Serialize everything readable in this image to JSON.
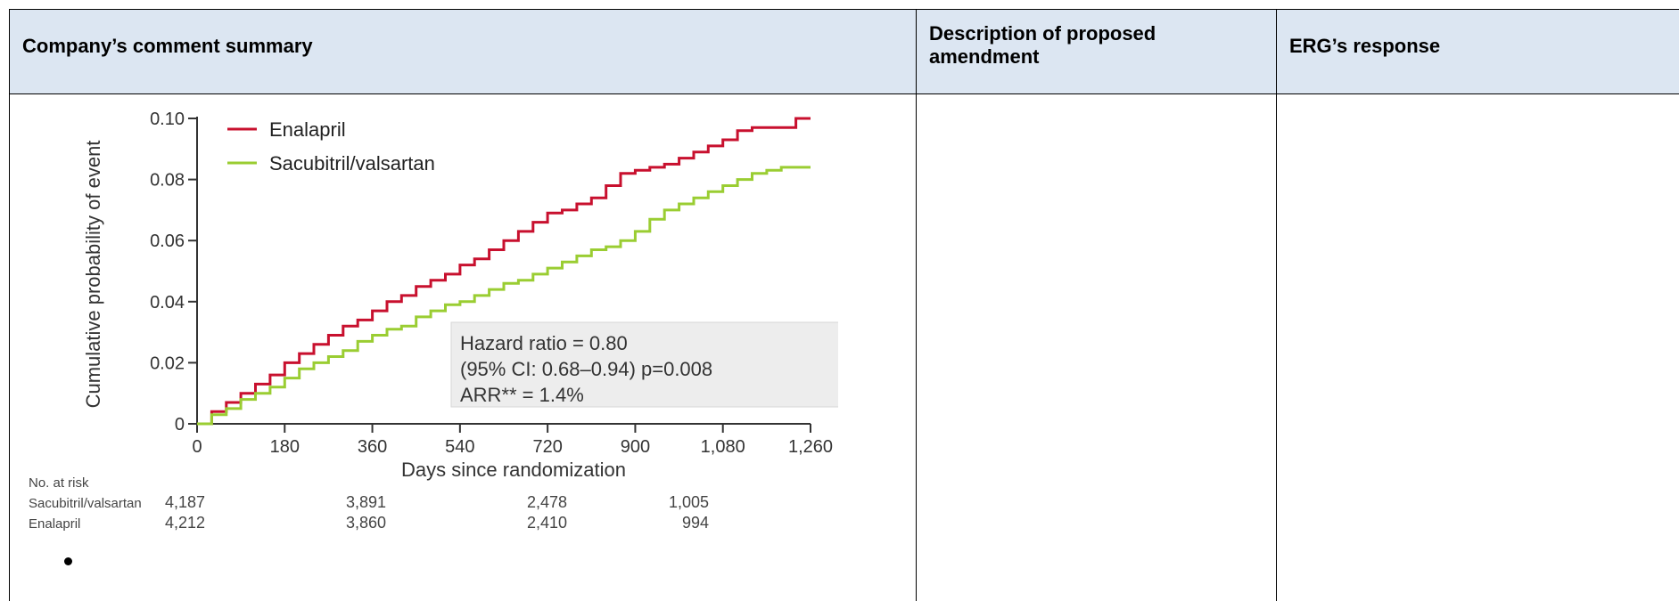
{
  "table": {
    "headers": [
      "Company’s comment summary",
      "Description of proposed amendment",
      "ERG’s response"
    ]
  },
  "chart_data": {
    "type": "line",
    "xlabel": "Days since randomization",
    "ylabel": "Cumulative probability of event",
    "xlim": [
      0,
      1260
    ],
    "ylim": [
      0,
      0.1
    ],
    "xticks": [
      "0",
      "180",
      "360",
      "540",
      "720",
      "900",
      "1,080",
      "1,260"
    ],
    "yticks": [
      "0",
      "0.02",
      "0.04",
      "0.06",
      "0.08",
      "0.10"
    ],
    "legend_position": "top-left",
    "series": [
      {
        "name": "Enalapril",
        "color": "#c8102e",
        "x": [
          0,
          30,
          60,
          90,
          120,
          150,
          180,
          210,
          240,
          270,
          300,
          330,
          360,
          390,
          420,
          450,
          480,
          510,
          540,
          570,
          600,
          630,
          660,
          690,
          720,
          750,
          780,
          810,
          840,
          870,
          900,
          930,
          960,
          990,
          1020,
          1050,
          1080,
          1110,
          1140,
          1170,
          1200,
          1230,
          1260
        ],
        "y": [
          0,
          0.004,
          0.007,
          0.01,
          0.013,
          0.016,
          0.02,
          0.023,
          0.026,
          0.029,
          0.032,
          0.034,
          0.037,
          0.04,
          0.042,
          0.045,
          0.047,
          0.049,
          0.052,
          0.054,
          0.057,
          0.06,
          0.063,
          0.066,
          0.069,
          0.07,
          0.072,
          0.074,
          0.078,
          0.082,
          0.083,
          0.084,
          0.085,
          0.087,
          0.089,
          0.091,
          0.093,
          0.096,
          0.097,
          0.097,
          0.097,
          0.1,
          0.1
        ]
      },
      {
        "name": "Sacubitril/valsartan",
        "color": "#9acd32",
        "x": [
          0,
          30,
          60,
          90,
          120,
          150,
          180,
          210,
          240,
          270,
          300,
          330,
          360,
          390,
          420,
          450,
          480,
          510,
          540,
          570,
          600,
          630,
          660,
          690,
          720,
          750,
          780,
          810,
          840,
          870,
          900,
          930,
          960,
          990,
          1020,
          1050,
          1080,
          1110,
          1140,
          1170,
          1200,
          1230,
          1260
        ],
        "y": [
          0,
          0.003,
          0.005,
          0.008,
          0.01,
          0.012,
          0.015,
          0.018,
          0.02,
          0.022,
          0.024,
          0.027,
          0.029,
          0.031,
          0.032,
          0.035,
          0.037,
          0.039,
          0.04,
          0.042,
          0.044,
          0.046,
          0.047,
          0.049,
          0.051,
          0.053,
          0.055,
          0.057,
          0.058,
          0.06,
          0.063,
          0.067,
          0.07,
          0.072,
          0.074,
          0.076,
          0.078,
          0.08,
          0.082,
          0.083,
          0.084,
          0.084,
          0.084
        ]
      }
    ],
    "annotation": [
      "Hazard  ratio = 0.80",
      "(95% CI: 0.68–0.94) p=0.008",
      "ARR** = 1.4%"
    ],
    "risk_table": {
      "title": "No. at risk",
      "rows": [
        {
          "label": "Sacubitril/valsartan",
          "values": [
            "4,187",
            "3,891",
            "2,478",
            "1,005"
          ]
        },
        {
          "label": "Enalapril",
          "values": [
            "4,212",
            "3,860",
            "2,410",
            "994"
          ]
        }
      ]
    }
  }
}
